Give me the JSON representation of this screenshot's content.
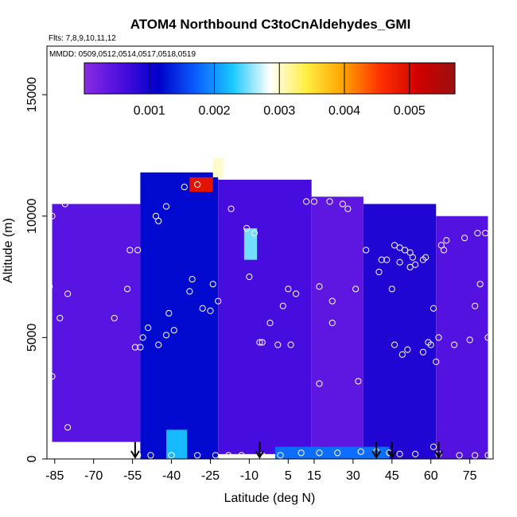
{
  "chart_data": {
    "type": "heatmap",
    "title": "ATOM4 Northbound C3toCnAldehydes_GMI",
    "subtitle_flights": "Flts: 7,8,9,10,11,12",
    "subtitle_dates": "MMDD: 0509,0512,0514,0517,0518,0519",
    "xlabel": "Latitude (deg N)",
    "ylabel": "Altitude (m)",
    "xlim": [
      -88,
      84
    ],
    "ylim": [
      0,
      17000
    ],
    "x_ticks": [
      -85,
      -70,
      -55,
      -40,
      -25,
      -10,
      5,
      15,
      30,
      45,
      60,
      75
    ],
    "y_ticks": [
      0,
      5000,
      10000,
      15000
    ],
    "colorbar": {
      "range": [
        0,
        0.0057
      ],
      "ticks": [
        "0.001",
        "0.002",
        "0.003",
        "0.004",
        "0.005"
      ],
      "colors": [
        "#8a2be2",
        "#4b0ee0",
        "#0000c8",
        "#0a5cff",
        "#19c8ff",
        "#ffffff",
        "#ffee40",
        "#ffa000",
        "#ff3000",
        "#d00000",
        "#9a1010"
      ]
    },
    "grid": false,
    "field": [
      {
        "lat_min": -86,
        "lat_max": -52,
        "alt_bottom": 700,
        "alt_top": 10500,
        "value": 0.00045
      },
      {
        "lat_min": -52,
        "lat_max": -22,
        "alt_bottom": 0,
        "alt_top": 11800,
        "value": 0.0012
      },
      {
        "lat_min": -22,
        "lat_max": 14,
        "alt_bottom": 200,
        "alt_top": 11500,
        "value": 0.0006
      },
      {
        "lat_min": 14,
        "lat_max": 34,
        "alt_bottom": 0,
        "alt_top": 10800,
        "value": 0.0004
      },
      {
        "lat_min": 34,
        "lat_max": 62,
        "alt_bottom": 0,
        "alt_top": 10500,
        "value": 0.0009
      },
      {
        "lat_min": 62,
        "lat_max": 82,
        "alt_bottom": 0,
        "alt_top": 10000,
        "value": 0.0005
      },
      {
        "lat_min": -33,
        "lat_max": -24,
        "alt_bottom": 11000,
        "alt_top": 11600,
        "value": 0.0049
      },
      {
        "lat_min": -24,
        "lat_max": -20,
        "alt_bottom": 11600,
        "alt_top": 12400,
        "value": 0.003
      },
      {
        "lat_min": -12,
        "lat_max": -7,
        "alt_bottom": 8200,
        "alt_top": 9500,
        "value": 0.0025
      },
      {
        "lat_min": -42,
        "lat_max": -34,
        "alt_bottom": 0,
        "alt_top": 1200,
        "value": 0.0022
      },
      {
        "lat_min": 0,
        "lat_max": 44,
        "alt_bottom": 0,
        "alt_top": 500,
        "value": 0.0018
      }
    ],
    "observations": [
      {
        "lat": -86,
        "alt": 10000
      },
      {
        "lat": -81,
        "alt": 10500
      },
      {
        "lat": -78,
        "alt": 10800
      },
      {
        "lat": -74,
        "alt": 11300
      },
      {
        "lat": -71,
        "alt": 11400
      },
      {
        "lat": -83,
        "alt": 5800
      },
      {
        "lat": -80,
        "alt": 6800
      },
      {
        "lat": -87,
        "alt": 7100
      },
      {
        "lat": -86,
        "alt": 3400
      },
      {
        "lat": -80,
        "alt": 1300
      },
      {
        "lat": -62,
        "alt": 5800
      },
      {
        "lat": -57,
        "alt": 7000
      },
      {
        "lat": -56,
        "alt": 8600
      },
      {
        "lat": -53,
        "alt": 8600
      },
      {
        "lat": -54,
        "alt": 4600
      },
      {
        "lat": -52,
        "alt": 4600
      },
      {
        "lat": -51,
        "alt": 5000
      },
      {
        "lat": -49,
        "alt": 5400
      },
      {
        "lat": -46,
        "alt": 10000
      },
      {
        "lat": -45,
        "alt": 9800
      },
      {
        "lat": -42,
        "alt": 10400
      },
      {
        "lat": -45,
        "alt": 4700
      },
      {
        "lat": -42,
        "alt": 5100
      },
      {
        "lat": -41,
        "alt": 6000
      },
      {
        "lat": -39,
        "alt": 5300
      },
      {
        "lat": -35,
        "alt": 11200
      },
      {
        "lat": -30,
        "alt": 11300
      },
      {
        "lat": -33,
        "alt": 6900
      },
      {
        "lat": -32,
        "alt": 7400
      },
      {
        "lat": -28,
        "alt": 6200
      },
      {
        "lat": -25,
        "alt": 6100
      },
      {
        "lat": -24,
        "alt": 7200
      },
      {
        "lat": -22,
        "alt": 6500
      },
      {
        "lat": -17,
        "alt": 10300
      },
      {
        "lat": -11,
        "alt": 9500
      },
      {
        "lat": -10,
        "alt": 7500
      },
      {
        "lat": -8,
        "alt": 9300
      },
      {
        "lat": -6,
        "alt": 4800
      },
      {
        "lat": -5,
        "alt": 4800
      },
      {
        "lat": -2,
        "alt": 5600
      },
      {
        "lat": 1,
        "alt": 4700
      },
      {
        "lat": 3,
        "alt": 6300
      },
      {
        "lat": 5,
        "alt": 7000
      },
      {
        "lat": 6,
        "alt": 4700
      },
      {
        "lat": 8,
        "alt": 6800
      },
      {
        "lat": 12,
        "alt": 10600
      },
      {
        "lat": 15,
        "alt": 10600
      },
      {
        "lat": 17,
        "alt": 7100
      },
      {
        "lat": 17,
        "alt": 3100
      },
      {
        "lat": 21,
        "alt": 10600
      },
      {
        "lat": 22,
        "alt": 6500
      },
      {
        "lat": 22,
        "alt": 5600
      },
      {
        "lat": 26,
        "alt": 10500
      },
      {
        "lat": 28,
        "alt": 10300
      },
      {
        "lat": 31,
        "alt": 7000
      },
      {
        "lat": 32,
        "alt": 3200
      },
      {
        "lat": 35,
        "alt": 8600
      },
      {
        "lat": 40,
        "alt": 7700
      },
      {
        "lat": 41,
        "alt": 8200
      },
      {
        "lat": 43,
        "alt": 8200
      },
      {
        "lat": 45,
        "alt": 7000
      },
      {
        "lat": 46,
        "alt": 8800
      },
      {
        "lat": 46,
        "alt": 4700
      },
      {
        "lat": 48,
        "alt": 8700
      },
      {
        "lat": 48,
        "alt": 8100
      },
      {
        "lat": 49,
        "alt": 4300
      },
      {
        "lat": 50,
        "alt": 8600
      },
      {
        "lat": 51,
        "alt": 4500
      },
      {
        "lat": 52,
        "alt": 8500
      },
      {
        "lat": 52,
        "alt": 7900
      },
      {
        "lat": 53,
        "alt": 8300
      },
      {
        "lat": 54,
        "alt": 8000
      },
      {
        "lat": 57,
        "alt": 8200
      },
      {
        "lat": 57,
        "alt": 4400
      },
      {
        "lat": 58,
        "alt": 8300
      },
      {
        "lat": 59,
        "alt": 4800
      },
      {
        "lat": 60,
        "alt": 4700
      },
      {
        "lat": 61,
        "alt": 6200
      },
      {
        "lat": 62,
        "alt": 4000
      },
      {
        "lat": 63,
        "alt": 5000
      },
      {
        "lat": 64,
        "alt": 8800
      },
      {
        "lat": 65,
        "alt": 8600
      },
      {
        "lat": 66,
        "alt": 9000
      },
      {
        "lat": 67,
        "alt": 10300
      },
      {
        "lat": 69,
        "alt": 4700
      },
      {
        "lat": 70,
        "alt": 11400
      },
      {
        "lat": 70,
        "alt": 10700
      },
      {
        "lat": 72,
        "alt": 10600
      },
      {
        "lat": 73,
        "alt": 9100
      },
      {
        "lat": 75,
        "alt": 4900
      },
      {
        "lat": 77,
        "alt": 6300
      },
      {
        "lat": 78,
        "alt": 9300
      },
      {
        "lat": 79,
        "alt": 7200
      },
      {
        "lat": 81,
        "alt": 9300
      },
      {
        "lat": 82,
        "alt": 5000
      },
      {
        "lat": -53,
        "alt": 150
      },
      {
        "lat": -48,
        "alt": 150
      },
      {
        "lat": -40,
        "alt": 150
      },
      {
        "lat": -30,
        "alt": 150
      },
      {
        "lat": -23,
        "alt": 150
      },
      {
        "lat": -18,
        "alt": 150
      },
      {
        "lat": -13,
        "alt": 150
      },
      {
        "lat": -5,
        "alt": 150
      },
      {
        "lat": 2,
        "alt": 150
      },
      {
        "lat": 10,
        "alt": 250
      },
      {
        "lat": 17,
        "alt": 250
      },
      {
        "lat": 24,
        "alt": 250
      },
      {
        "lat": 33,
        "alt": 300
      },
      {
        "lat": 39,
        "alt": 300
      },
      {
        "lat": 44,
        "alt": 250
      },
      {
        "lat": 48,
        "alt": 200
      },
      {
        "lat": 54,
        "alt": 200
      },
      {
        "lat": 61,
        "alt": 500
      },
      {
        "lat": 63,
        "alt": 200
      },
      {
        "lat": 71,
        "alt": 150
      },
      {
        "lat": 77,
        "alt": 150
      },
      {
        "lat": 82,
        "alt": 150
      }
    ],
    "arrows": [
      {
        "lat": -54,
        "alt_start": 700
      },
      {
        "lat": -6,
        "alt_start": 700
      },
      {
        "lat": 39,
        "alt_start": 700
      },
      {
        "lat": 45,
        "alt_start": 700
      },
      {
        "lat": 63,
        "alt_start": 700
      }
    ]
  }
}
